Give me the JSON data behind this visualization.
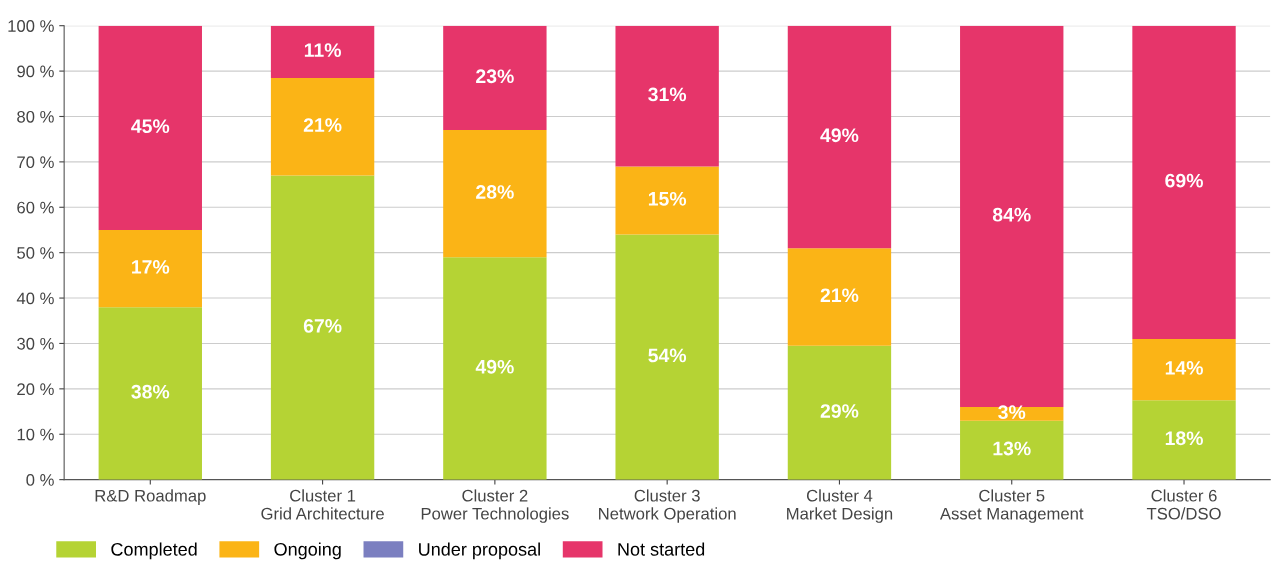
{
  "chart_data": {
    "type": "bar",
    "stacked": true,
    "categories": [
      "R&D Roadmap",
      "Cluster 1\nGrid Architecture",
      "Cluster 2\nPower Technologies",
      "Cluster 3\nNetwork Operation",
      "Cluster 4\nMarket Design",
      "Cluster 5\nAsset Management",
      "Cluster 6\nTSO/DSO"
    ],
    "series": [
      {
        "name": "Completed",
        "color": "#b5d334",
        "values": [
          38,
          67,
          49,
          54,
          29.5,
          13,
          17.5
        ],
        "value_labels": [
          "38%",
          "67%",
          "49%",
          "54%",
          "29%",
          "13%",
          "18%"
        ]
      },
      {
        "name": "Ongoing",
        "color": "#fbb416",
        "values": [
          17,
          21.5,
          28,
          15,
          21.5,
          3,
          13.5
        ],
        "value_labels": [
          "17%",
          "21%",
          "28%",
          "15%",
          "21%",
          "3%",
          "14%"
        ]
      },
      {
        "name": "Under proposal",
        "color": "#7b7fc0",
        "values": [
          0,
          0,
          0,
          0,
          0,
          0,
          0
        ],
        "value_labels": [
          null,
          null,
          null,
          null,
          null,
          null,
          null
        ]
      },
      {
        "name": "Not started",
        "color": "#e6356a",
        "values": [
          45,
          11.5,
          23,
          31,
          49,
          84,
          69
        ],
        "value_labels": [
          "45%",
          "11%",
          "23%",
          "31%",
          "49%",
          "84%",
          "69%"
        ]
      }
    ],
    "ylim": [
      0,
      100
    ],
    "yticks": [
      {
        "value": 0,
        "label": "0 %"
      },
      {
        "value": 10,
        "label": "10 %"
      },
      {
        "value": 20,
        "label": "20 %"
      },
      {
        "value": 30,
        "label": "30 %"
      },
      {
        "value": 40,
        "label": "40 %"
      },
      {
        "value": 50,
        "label": "50 %"
      },
      {
        "value": 60,
        "label": "60 %"
      },
      {
        "value": 70,
        "label": "70 %"
      },
      {
        "value": 80,
        "label": "80 %"
      },
      {
        "value": 90,
        "label": "90 %"
      },
      {
        "value": 100,
        "label": "100 %"
      }
    ],
    "grid": "y",
    "legend": "bottom left"
  }
}
